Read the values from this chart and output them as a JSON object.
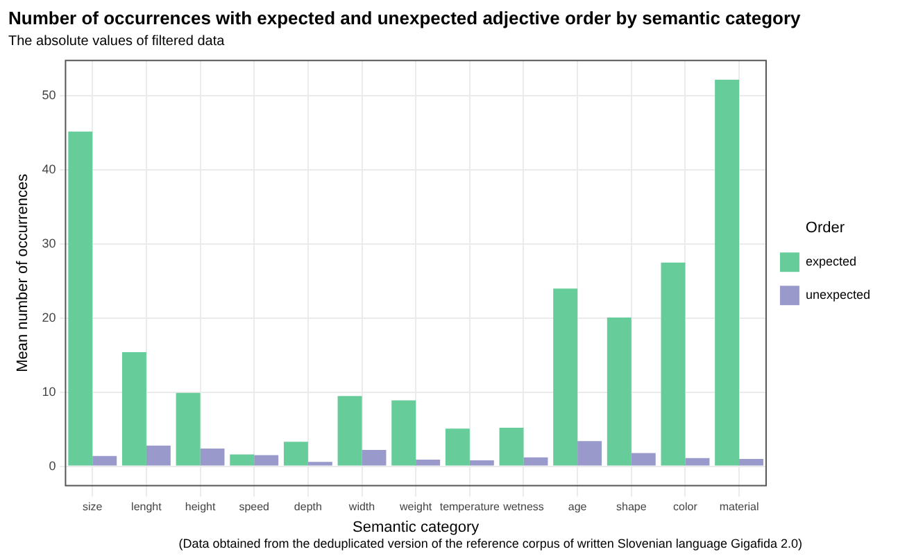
{
  "chart_data": {
    "type": "bar",
    "title": "Number of occurrences with expected and unexpected adjective order by semantic category",
    "subtitle": "The absolute values of filtered data",
    "xlabel": "Semantic category",
    "ylabel": "Mean number of occurrences",
    "legend_title": "Order",
    "categories": [
      "size",
      "lenght",
      "height",
      "speed",
      "depth",
      "width",
      "weight",
      "temperature",
      "wetness",
      "age",
      "shape",
      "color",
      "material"
    ],
    "series": [
      {
        "name": "expected",
        "color": "#66cc99",
        "values": [
          45.2,
          15.4,
          9.9,
          1.6,
          3.3,
          9.5,
          8.9,
          5.1,
          5.2,
          24.0,
          20.1,
          27.5,
          52.2
        ]
      },
      {
        "name": "unexpected",
        "color": "#9999cc",
        "values": [
          1.4,
          2.8,
          2.4,
          1.5,
          0.6,
          2.2,
          0.9,
          0.8,
          1.2,
          3.4,
          1.8,
          1.1,
          1.0
        ]
      }
    ],
    "ylim": [
      -2.6,
      54.8
    ],
    "yticks": [
      0,
      10,
      20,
      30,
      40,
      50
    ],
    "grid": true,
    "legend": "right",
    "annotations": [
      "(Data obtained from the deduplicated version of the reference corpus of written Slovenian language Gigafida 2.0)"
    ]
  }
}
